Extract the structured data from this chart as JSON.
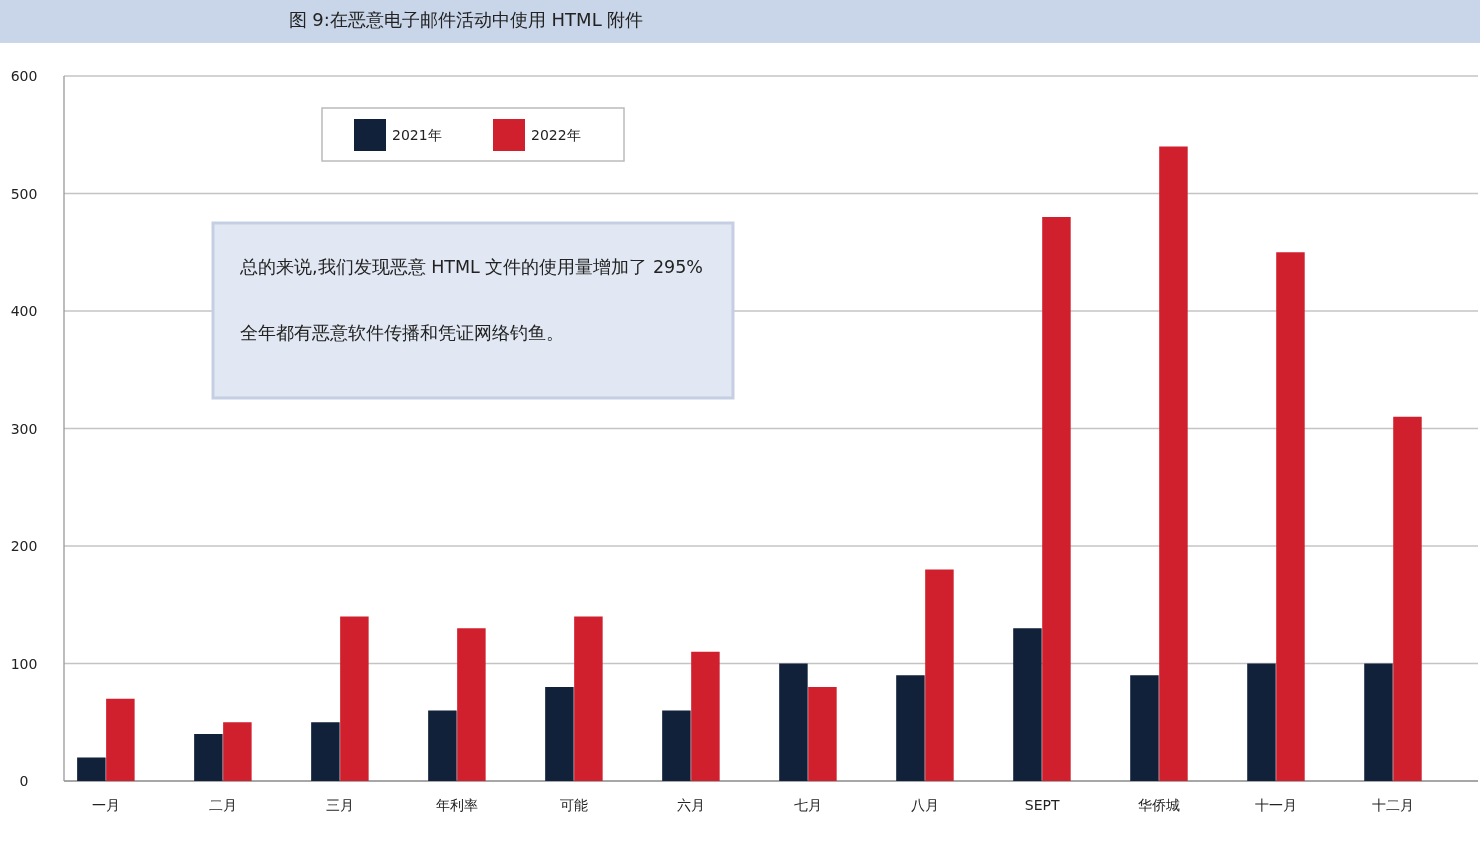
{
  "chart_data": {
    "type": "bar",
    "title": "图 9:在恶意电子邮件活动中使用 HTML 附件",
    "categories": [
      "一月",
      "二月",
      "三月",
      "年利率",
      "可能",
      "六月",
      "七月",
      "八月",
      "SEPT",
      "华侨城",
      "十一月",
      "十二月"
    ],
    "series": [
      {
        "name": "2021年",
        "color": "#12213a",
        "values": [
          20,
          40,
          50,
          60,
          80,
          60,
          100,
          90,
          130,
          90,
          100,
          100
        ]
      },
      {
        "name": "2022年",
        "color": "#d0202e",
        "values": [
          70,
          50,
          140,
          130,
          140,
          110,
          80,
          180,
          480,
          540,
          450,
          310
        ]
      }
    ],
    "ylim": [
      0,
      600
    ],
    "yticks": [
      0,
      100,
      200,
      300,
      400,
      500,
      600
    ],
    "grid": "y",
    "legend": "top left",
    "annotations": [
      "总的来说,我们发现恶意 HTML 文件的使用量增加了 295%",
      "全年都有恶意软件传播和凭证网络钓鱼。"
    ]
  }
}
